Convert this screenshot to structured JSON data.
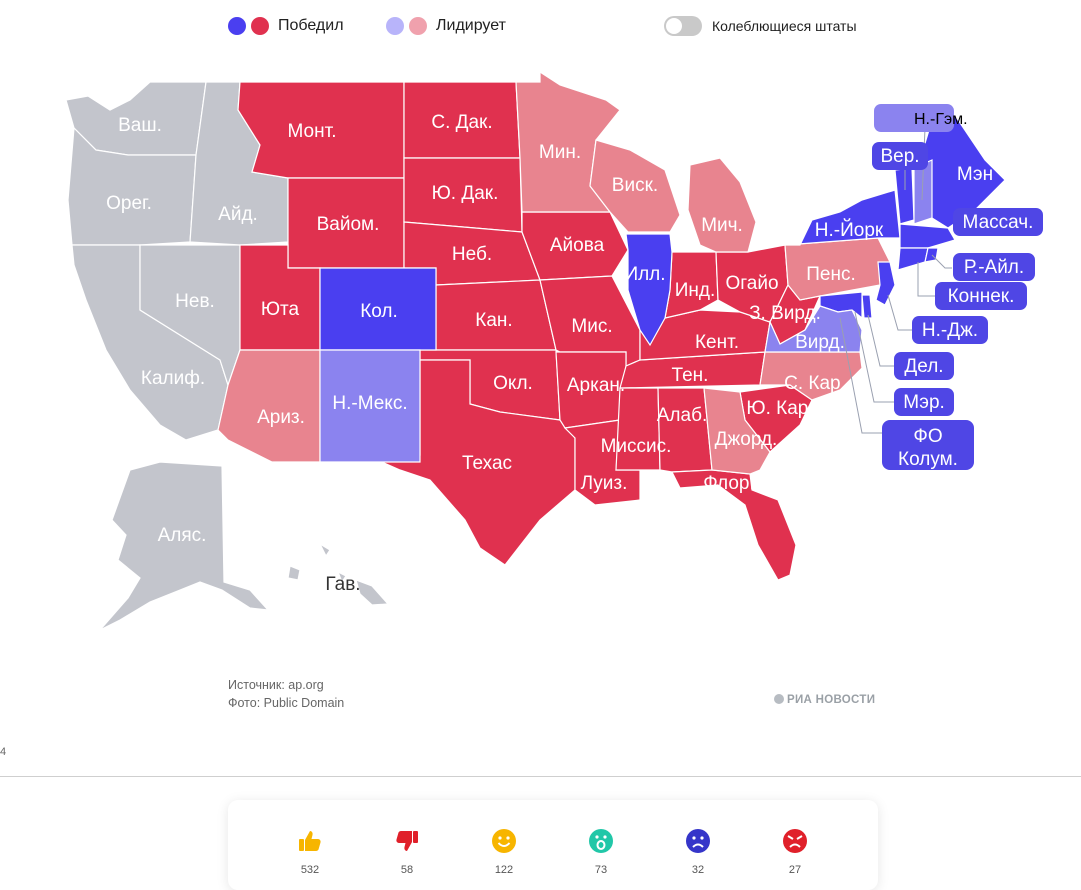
{
  "legend": {
    "won": "Победил",
    "leading": "Лидирует",
    "swing_states": "Колеблющиеся штаты",
    "colors": {
      "dem_won": "#4a3ff0",
      "rep_won": "#e0314f",
      "dem_leading": "#b8b4fa",
      "rep_leading": "#f0a1ad"
    }
  },
  "states": {
    "wa": "Ваш.",
    "or": "Орег.",
    "ca": "Калиф.",
    "nv": "Нев.",
    "id": "Айд.",
    "mt": "Монт.",
    "wy": "Вайом.",
    "ut": "Юта",
    "az": "Ариз.",
    "co": "Кол.",
    "nm": "Н.-Мекс.",
    "nd": "С. Дак.",
    "sd": "Ю. Дак.",
    "ne": "Неб.",
    "ks": "Кан.",
    "ok": "Окл.",
    "tx": "Техас",
    "mn": "Мин.",
    "ia": "Айова",
    "mo": "Мис.",
    "ar": "Аркан.",
    "la": "Луиз.",
    "wi": "Виск.",
    "il": "Илл.",
    "mi": "Мич.",
    "in": "Инд.",
    "oh": "Огайо",
    "ky": "Кент.",
    "tn": "Тен.",
    "ms": "Миссис.",
    "al": "Алаб.",
    "ga": "Джорд.",
    "fl": "Флор.",
    "sc": "Ю. Кар.",
    "nc": "С. Кар.",
    "va": "Вирд.",
    "wv": "З. Вирд.",
    "pa": "Пенс.",
    "ny": "Н.-Йорк",
    "me": "Мэн",
    "ak": "Аляс.",
    "hi": "Гав."
  },
  "callouts": {
    "nh": "Н.-Гэм.",
    "vt": "Вер.",
    "ma": "Массач.",
    "ri": "Р.-Айл.",
    "ct": "Коннек.",
    "nj": "Н.-Дж.",
    "de": "Дел.",
    "md": "Мэр.",
    "dc_1": "ФО",
    "dc_2": "Колум."
  },
  "footer": {
    "source": "Источник: ap.org",
    "photo": "Фото: Public Domain",
    "brand": "РИА НОВОСТИ",
    "stub": "4"
  },
  "reactions": [
    {
      "icon": "thumbs-up-icon",
      "count": "532",
      "color": "#f7b500"
    },
    {
      "icon": "thumbs-down-icon",
      "count": "58",
      "color": "#e0202a"
    },
    {
      "icon": "smile-icon",
      "count": "122",
      "color": "#f7b500"
    },
    {
      "icon": "surprised-icon",
      "count": "73",
      "color": "#21c7a8"
    },
    {
      "icon": "sad-icon",
      "count": "32",
      "color": "#3535c9"
    },
    {
      "icon": "angry-icon",
      "count": "27",
      "color": "#e0202a"
    }
  ]
}
